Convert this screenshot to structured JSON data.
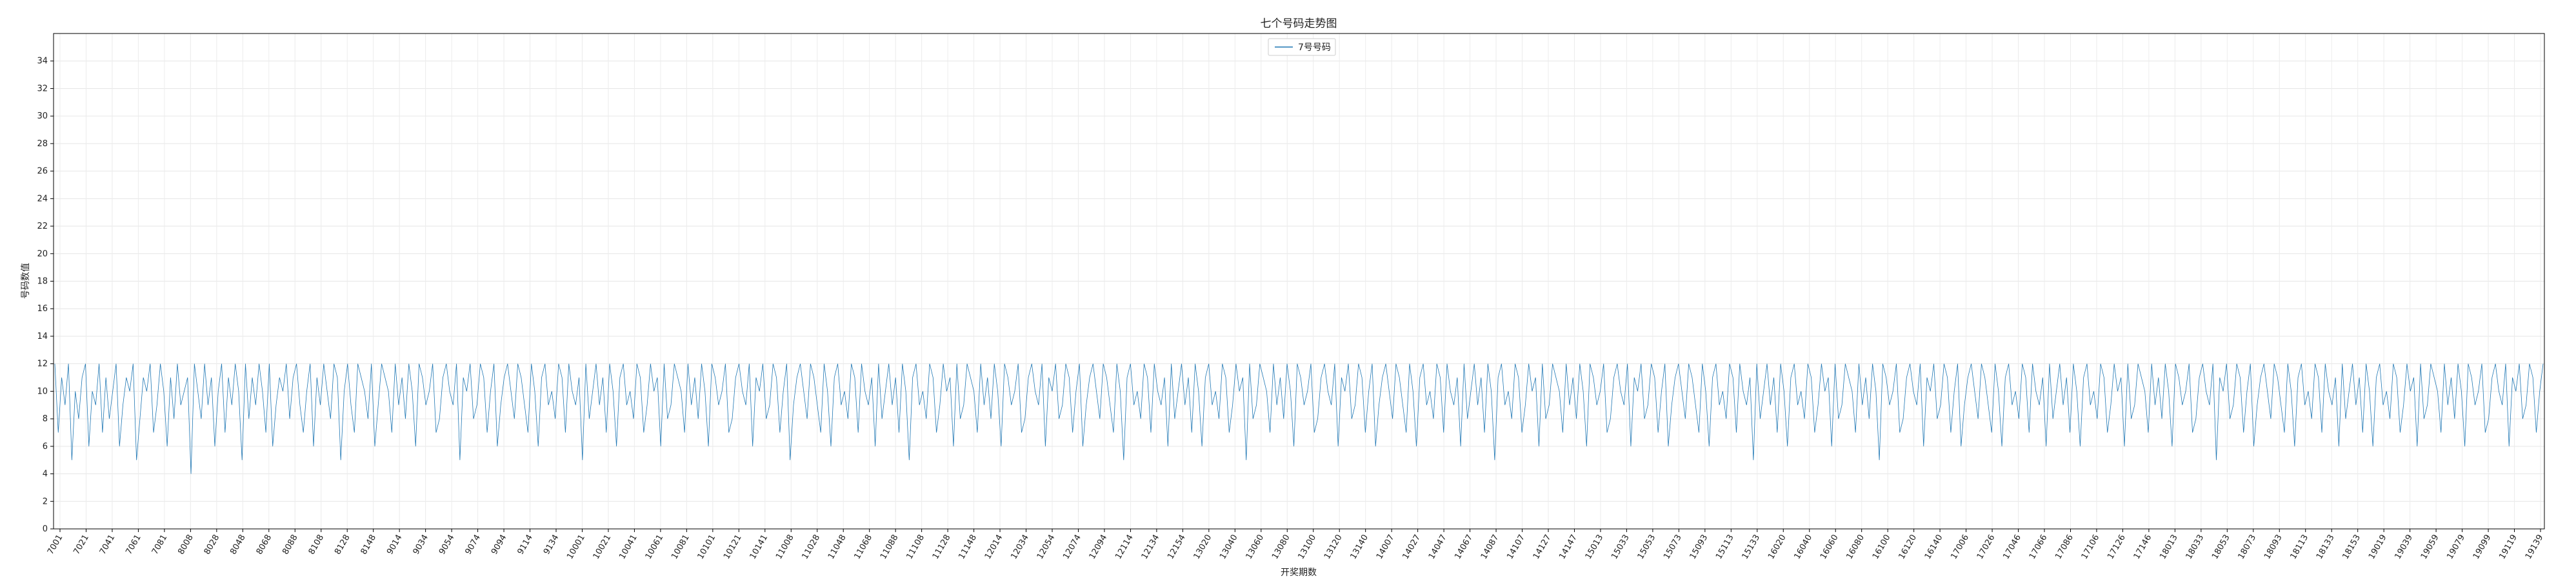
{
  "chart_data": {
    "type": "line",
    "title": "七个号码走势图",
    "xlabel": "开奖期数",
    "ylabel": "号码数值",
    "ylim": [
      0,
      36
    ],
    "yticks": [
      0,
      2,
      4,
      6,
      8,
      10,
      12,
      14,
      16,
      18,
      20,
      22,
      24,
      26,
      28,
      30,
      32,
      34
    ],
    "grid": true,
    "legend_position": "top-center",
    "series_color": "#1f77b4",
    "x_tick_labels": [
      "7001",
      "7021",
      "7041",
      "7061",
      "7081",
      "8008",
      "8028",
      "8048",
      "8068",
      "8088",
      "8108",
      "8128",
      "8148",
      "9014",
      "9034",
      "9054",
      "9074",
      "9094",
      "9114",
      "9134",
      "10001",
      "10021",
      "10041",
      "10061",
      "10081",
      "10101",
      "10121",
      "10141",
      "11008",
      "11028",
      "11048",
      "11068",
      "11088",
      "11108",
      "11128",
      "11148",
      "12014",
      "12034",
      "12054",
      "12074",
      "12094",
      "12114",
      "12134",
      "12154",
      "13020",
      "13040",
      "13060",
      "13080",
      "13100",
      "13120",
      "13140",
      "14007",
      "14027",
      "14047",
      "14067",
      "14087",
      "14107",
      "14127",
      "14147",
      "15013",
      "15033",
      "15053",
      "15073",
      "15093",
      "15113",
      "15133",
      "16020",
      "16040",
      "16060",
      "16080",
      "16100",
      "16120",
      "16140",
      "17006",
      "17026",
      "17046",
      "17066",
      "17086",
      "17106",
      "17126",
      "17146",
      "18013",
      "18033",
      "18053",
      "18073",
      "18093",
      "18113",
      "18133",
      "18153",
      "19019",
      "19039",
      "19059",
      "19079",
      "19099",
      "19119",
      "19139"
    ],
    "series": [
      {
        "name": "7号号码",
        "values": [
          12,
          7,
          11,
          9,
          12,
          5,
          10,
          8,
          11,
          12,
          6,
          10,
          9,
          12,
          7,
          11,
          8,
          10,
          12,
          6,
          9,
          11,
          10,
          12,
          5,
          8,
          11,
          10,
          12,
          7,
          9,
          12,
          10,
          6,
          11,
          8,
          12,
          9,
          10,
          11,
          4,
          12,
          10,
          8,
          12,
          9,
          11,
          6,
          10,
          12,
          7,
          11,
          9,
          12,
          10,
          5,
          12,
          8,
          11,
          9,
          12,
          10,
          7,
          12,
          6,
          9,
          11,
          10,
          12,
          8,
          11,
          12,
          9,
          7,
          10,
          12,
          6,
          11,
          9,
          12,
          10,
          8,
          12,
          11,
          5,
          10,
          12,
          9,
          7,
          12,
          11,
          10,
          8,
          12,
          6,
          9,
          12,
          11,
          10,
          7,
          12,
          9,
          11,
          8,
          12,
          10,
          6,
          12,
          11,
          9,
          10,
          12,
          7,
          8,
          11,
          12,
          10,
          9,
          12,
          5,
          11,
          10,
          12,
          8,
          9,
          12,
          11,
          7,
          10,
          12,
          6,
          9,
          11,
          12,
          10,
          8,
          12,
          11,
          9,
          7,
          12,
          10,
          6,
          11,
          12,
          9,
          10,
          8,
          12,
          11,
          7,
          12,
          10,
          9,
          11,
          5,
          12,
          8,
          10,
          12,
          9,
          11,
          7,
          12,
          10,
          6,
          11,
          12,
          9,
          10,
          8,
          12,
          11,
          7,
          9,
          12,
          10,
          11,
          6,
          12,
          8,
          9,
          12,
          11,
          10,
          7,
          12,
          9,
          11,
          8,
          12,
          10,
          6,
          12,
          11,
          9,
          10,
          12,
          7,
          8,
          11,
          12,
          10,
          9,
          12,
          6,
          11,
          10,
          12,
          8,
          9,
          12,
          11,
          7,
          10,
          12,
          5,
          9,
          11,
          12,
          10,
          8,
          12,
          11,
          9,
          7,
          12,
          10,
          6,
          11,
          12,
          9,
          10,
          8,
          12,
          11,
          7,
          12,
          10,
          9,
          11,
          6,
          12,
          8,
          10,
          12,
          9,
          11,
          7,
          12,
          10,
          5,
          11,
          12,
          9,
          10,
          8,
          12,
          11,
          7,
          9,
          12,
          10,
          11,
          6,
          12,
          8,
          9,
          12,
          11,
          10,
          7,
          12,
          9,
          11,
          8,
          12,
          10,
          6,
          12,
          11,
          9,
          10,
          12,
          7,
          8,
          11,
          12,
          10,
          9,
          12,
          6,
          11,
          10,
          12,
          8,
          9,
          12,
          11,
          7,
          10,
          12,
          6,
          9,
          11,
          12,
          10,
          8,
          12,
          11,
          9,
          7,
          12,
          10,
          5,
          11,
          12,
          9,
          10,
          8,
          12,
          11,
          7,
          12,
          10,
          9,
          11,
          6,
          12,
          8,
          10,
          12,
          9,
          11,
          7,
          12,
          10,
          6,
          11,
          12,
          9,
          10,
          8,
          12,
          11,
          7,
          9,
          12,
          10,
          11,
          5,
          12,
          8,
          9,
          12,
          11,
          10,
          7,
          12,
          9,
          11,
          8,
          12,
          10,
          6,
          12,
          11,
          9,
          10,
          12,
          7,
          8,
          11,
          12,
          10,
          9,
          12,
          6,
          11,
          10,
          12,
          8,
          9,
          12,
          11,
          7,
          10,
          12,
          6,
          9,
          11,
          12,
          10,
          8,
          12,
          11,
          9,
          7,
          12,
          10,
          6,
          11,
          12,
          9,
          10,
          8,
          12,
          11,
          7,
          12,
          10,
          9,
          11,
          6,
          12,
          8,
          10,
          12,
          9,
          11,
          7,
          12,
          10,
          5,
          11,
          12,
          9,
          10,
          8,
          12,
          11,
          7,
          9,
          12,
          10,
          11,
          6,
          12,
          8,
          9,
          12,
          11,
          10,
          7,
          12,
          9,
          11,
          8,
          12,
          10,
          6,
          12,
          11,
          9,
          10,
          12,
          7,
          8,
          11,
          12,
          10,
          9,
          12,
          6,
          11,
          10,
          12,
          8,
          9,
          12,
          11,
          7,
          10,
          12,
          6,
          9,
          11,
          12,
          10,
          8,
          12,
          11,
          9,
          7,
          12,
          10,
          6,
          11,
          12,
          9,
          10,
          8,
          12,
          11,
          7,
          12,
          10,
          9,
          11,
          5,
          12,
          8,
          10,
          12,
          9,
          11,
          7,
          12,
          10,
          6,
          11,
          12,
          9,
          10,
          8,
          12,
          11,
          7,
          9,
          12,
          10,
          11,
          6,
          12,
          8,
          9,
          12,
          11,
          10,
          7,
          12,
          9,
          11,
          8,
          12,
          10,
          5,
          12,
          11,
          9,
          10,
          12,
          7,
          8,
          11,
          12,
          10,
          9,
          12,
          6,
          11,
          10,
          12,
          8,
          9,
          12,
          11,
          7,
          10,
          12,
          6,
          9,
          11,
          12,
          10,
          8,
          12,
          11,
          9,
          7,
          12,
          10,
          6,
          11,
          12,
          9,
          10,
          8,
          12,
          11,
          7,
          12,
          10,
          9,
          11,
          6,
          12,
          8,
          10,
          12,
          9,
          11,
          7,
          12,
          10,
          6,
          11,
          12,
          9,
          10,
          8,
          12,
          11,
          7,
          9,
          12,
          10,
          11,
          6,
          12,
          8,
          9,
          12,
          11,
          10,
          7,
          12,
          9,
          11,
          8,
          12,
          10,
          6,
          12,
          11,
          9,
          10,
          12,
          7,
          8,
          11,
          12,
          10,
          9,
          12,
          5,
          11,
          10,
          12,
          8,
          9,
          12,
          11,
          7,
          10,
          12,
          6,
          9,
          11,
          12,
          10,
          8,
          12,
          11,
          9,
          7,
          12,
          10,
          6,
          11,
          12,
          9,
          10,
          8,
          12,
          11,
          7,
          12,
          10,
          9,
          11,
          6,
          12,
          8,
          10,
          12,
          9,
          11,
          7,
          12,
          10,
          6,
          11,
          12,
          9,
          10,
          8,
          12,
          11,
          7,
          9,
          12,
          10,
          11,
          6,
          12,
          8,
          9,
          12,
          11,
          10,
          7,
          12,
          9,
          11,
          8,
          12,
          10,
          6,
          12,
          11,
          9,
          10,
          12,
          7,
          8,
          11,
          12,
          10,
          9,
          12,
          6,
          11,
          10,
          12,
          8,
          9,
          12,
          11,
          7,
          10,
          12
        ]
      }
    ]
  }
}
